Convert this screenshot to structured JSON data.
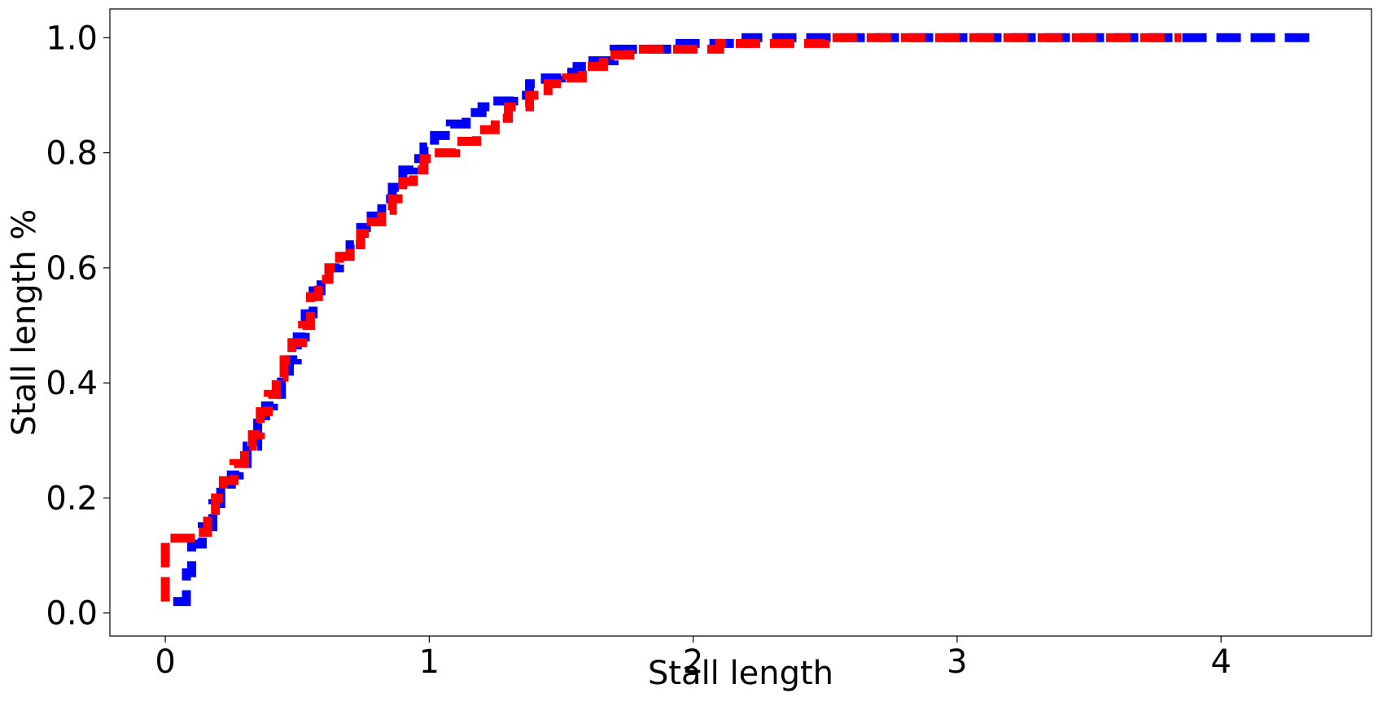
{
  "chart_data": {
    "type": "line",
    "title": "",
    "xlabel": "Stall length",
    "ylabel": "Stall length %",
    "xlim": [
      -0.21,
      4.57
    ],
    "ylim": [
      -0.04,
      1.05
    ],
    "xticks": [
      0,
      1,
      2,
      3,
      4
    ],
    "xtick_labels": [
      "0",
      "1",
      "2",
      "3",
      "4"
    ],
    "yticks": [
      0.0,
      0.2,
      0.4,
      0.6,
      0.8,
      1.0
    ],
    "ytick_labels": [
      "0.0",
      "0.2",
      "0.4",
      "0.6",
      "0.8",
      "1.0"
    ],
    "grid": false,
    "legend": "none",
    "series": [
      {
        "color": "#0000ff",
        "step": "post",
        "x": [
          0.03,
          0.08,
          0.1,
          0.14,
          0.18,
          0.21,
          0.25,
          0.28,
          0.31,
          0.35,
          0.38,
          0.41,
          0.44,
          0.47,
          0.5,
          0.53,
          0.56,
          0.59,
          0.62,
          0.66,
          0.7,
          0.74,
          0.78,
          0.82,
          0.86,
          0.9,
          0.94,
          0.98,
          1.02,
          1.08,
          1.14,
          1.2,
          1.26,
          1.32,
          1.38,
          1.44,
          1.5,
          1.56,
          1.62,
          1.7,
          1.8,
          1.95,
          2.2,
          4.35
        ],
        "y": [
          0.02,
          0.07,
          0.12,
          0.15,
          0.19,
          0.21,
          0.24,
          0.26,
          0.29,
          0.33,
          0.36,
          0.38,
          0.41,
          0.44,
          0.48,
          0.52,
          0.56,
          0.58,
          0.6,
          0.62,
          0.64,
          0.67,
          0.69,
          0.72,
          0.74,
          0.77,
          0.79,
          0.81,
          0.83,
          0.85,
          0.87,
          0.88,
          0.89,
          0.9,
          0.92,
          0.93,
          0.94,
          0.95,
          0.96,
          0.98,
          0.98,
          0.99,
          1.0,
          1.0
        ]
      },
      {
        "color": "#ff0000",
        "step": "post",
        "x": [
          0.0,
          0.0,
          0.12,
          0.16,
          0.19,
          0.22,
          0.26,
          0.3,
          0.33,
          0.36,
          0.39,
          0.42,
          0.45,
          0.48,
          0.52,
          0.55,
          0.58,
          0.62,
          0.66,
          0.7,
          0.74,
          0.78,
          0.82,
          0.86,
          0.9,
          0.94,
          0.98,
          1.02,
          1.1,
          1.18,
          1.25,
          1.3,
          1.38,
          1.45,
          1.52,
          1.58,
          1.66,
          1.76,
          1.9,
          2.1,
          2.5,
          3.5,
          3.85
        ],
        "y": [
          0.02,
          0.13,
          0.14,
          0.17,
          0.2,
          0.23,
          0.26,
          0.29,
          0.31,
          0.35,
          0.38,
          0.41,
          0.44,
          0.47,
          0.5,
          0.55,
          0.58,
          0.6,
          0.62,
          0.64,
          0.66,
          0.68,
          0.7,
          0.72,
          0.75,
          0.77,
          0.79,
          0.8,
          0.82,
          0.84,
          0.86,
          0.88,
          0.9,
          0.92,
          0.93,
          0.95,
          0.97,
          0.98,
          0.98,
          0.99,
          1.0,
          1.0,
          1.0
        ]
      }
    ]
  }
}
